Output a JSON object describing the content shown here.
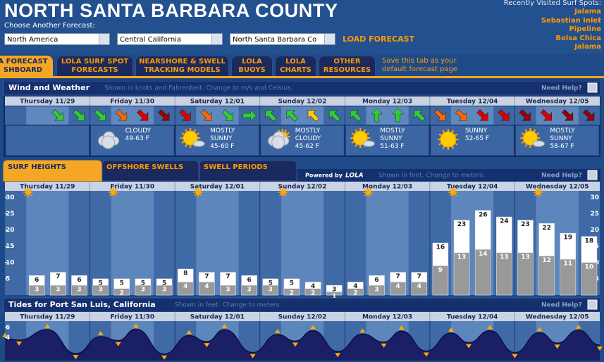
{
  "header": {
    "title": "NORTH SANTA BARBARA COUNTY",
    "choose_label": "Choose Another Forecast:",
    "selects": [
      "North America",
      "Central California",
      "North Santa Barbara Co"
    ],
    "load_button": "LOAD FORECAST",
    "recent_label": "Recently Visited Surf Spots:",
    "recent": [
      "Jalama",
      "Sebastian Inlet",
      "Pipeline",
      "Bolsa Chica",
      "Jalama"
    ]
  },
  "tabs": [
    "A FORECAST SHBOARD",
    "LOLA SURF SPOT FORECASTS",
    "NEARSHORE & SWELL TRACKING MODELS",
    "LOLA BUOYS",
    "LOLA CHARTS",
    "OTHER RESOURCES"
  ],
  "tabs_note": "Save this tab as your default forecast page",
  "days": [
    "Thursday 11/29",
    "Friday 11/30",
    "Saturday 12/01",
    "Sunday 12/02",
    "Monday 12/03",
    "Tuesday 12/04",
    "Wednesday 12/05"
  ],
  "wind_panel": {
    "title": "Wind and Weather",
    "note": "Shown in knots and Fahrenheit. Change to m/s and Celsius.",
    "help": "Need Help?"
  },
  "wind": [
    null,
    null,
    {
      "angle": 45,
      "color": "#33cc33"
    },
    {
      "angle": 45,
      "color": "#33cc33"
    },
    {
      "angle": 45,
      "color": "#33cc33"
    },
    {
      "angle": 45,
      "color": "#ff6600"
    },
    {
      "angle": 45,
      "color": "#dd0000"
    },
    {
      "angle": 45,
      "color": "#990000"
    },
    {
      "angle": 45,
      "color": "#dd0000"
    },
    {
      "angle": 45,
      "color": "#ff6600"
    },
    {
      "angle": 45,
      "color": "#33cc33"
    },
    {
      "angle": 0,
      "color": "#33cc33"
    },
    {
      "angle": 225,
      "color": "#33cc33"
    },
    {
      "angle": 225,
      "color": "#33cc33"
    },
    {
      "angle": 225,
      "color": "#ffcc00"
    },
    {
      "angle": 225,
      "color": "#33cc33"
    },
    {
      "angle": 225,
      "color": "#33cc33"
    },
    {
      "angle": 270,
      "color": "#33cc33"
    },
    {
      "angle": 270,
      "color": "#33cc33"
    },
    {
      "angle": 225,
      "color": "#33cc33"
    },
    {
      "angle": 45,
      "color": "#ff6600"
    },
    {
      "angle": 45,
      "color": "#ff6600"
    },
    {
      "angle": 45,
      "color": "#dd0000"
    },
    {
      "angle": 45,
      "color": "#dd0000"
    },
    {
      "angle": 45,
      "color": "#990000"
    },
    {
      "angle": 45,
      "color": "#dd0000"
    },
    {
      "angle": 45,
      "color": "#990000"
    },
    {
      "angle": 45,
      "color": "#990000"
    }
  ],
  "weather": [
    null,
    {
      "condition": "CLOUDY",
      "temps": "49-63 F"
    },
    {
      "condition": "MOSTLY SUNNY",
      "temps": "45-60 F"
    },
    {
      "condition": "MOSTLY CLOUDY",
      "temps": "45-62 F"
    },
    {
      "condition": "MOSTLY SUNNY",
      "temps": "51-63 F"
    },
    {
      "condition": "SUNNY",
      "temps": "52-65 F"
    },
    {
      "condition": "MOSTLY SUNNY",
      "temps": "58-67 F"
    }
  ],
  "surf": {
    "type": "bar",
    "tabs": [
      "SURF HEIGHTS",
      "OFFSHORE SWELLS",
      "SWELL PERIODS"
    ],
    "powered": "Powered by",
    "logo": "LOLA",
    "note": "Shown in feet. Change to meters.",
    "help": "Need Help?",
    "ylim": [
      0,
      32
    ],
    "yticks": [
      5,
      10,
      15,
      20,
      25,
      30
    ],
    "series": [
      {
        "color": "#ffffff",
        "values": [
          null,
          6,
          7,
          6,
          5,
          5,
          5,
          5,
          8,
          7,
          7,
          6,
          5,
          5,
          4,
          3,
          4,
          6,
          7,
          7,
          16,
          23,
          26,
          24,
          23,
          22,
          19,
          18
        ]
      },
      {
        "color": "#999999",
        "values": [
          null,
          3,
          3,
          3,
          3,
          2,
          3,
          3,
          4,
          4,
          3,
          3,
          3,
          2,
          2,
          1,
          2,
          3,
          4,
          4,
          9,
          13,
          14,
          13,
          13,
          12,
          11,
          10
        ]
      }
    ]
  },
  "tides": {
    "type": "area",
    "title": "Tides for Port San Luis, California",
    "note": "Shown in feet. Change to meters.",
    "help": "Need Help?",
    "xlim": [
      0,
      168
    ],
    "ylim": [
      -0.6,
      7.3
    ],
    "yticks": [
      4,
      6
    ],
    "color": "#1a1f66",
    "x": [
      0,
      4,
      12,
      20,
      27,
      32,
      37,
      45,
      52,
      57,
      62,
      70,
      77,
      82,
      87,
      94,
      101,
      107,
      112,
      119,
      126,
      131,
      137,
      144,
      151,
      156,
      162,
      168
    ],
    "values": [
      3.8,
      3.5,
      5.6,
      0.8,
      4.2,
      3.4,
      5.7,
      0.7,
      4.4,
      3.2,
      5.6,
      1.0,
      4.6,
      3.3,
      5.4,
      1.2,
      4.7,
      3.1,
      5.3,
      1.3,
      4.9,
      3.0,
      5.4,
      1.0,
      5.0,
      2.9,
      5.5,
      2.5
    ]
  }
}
